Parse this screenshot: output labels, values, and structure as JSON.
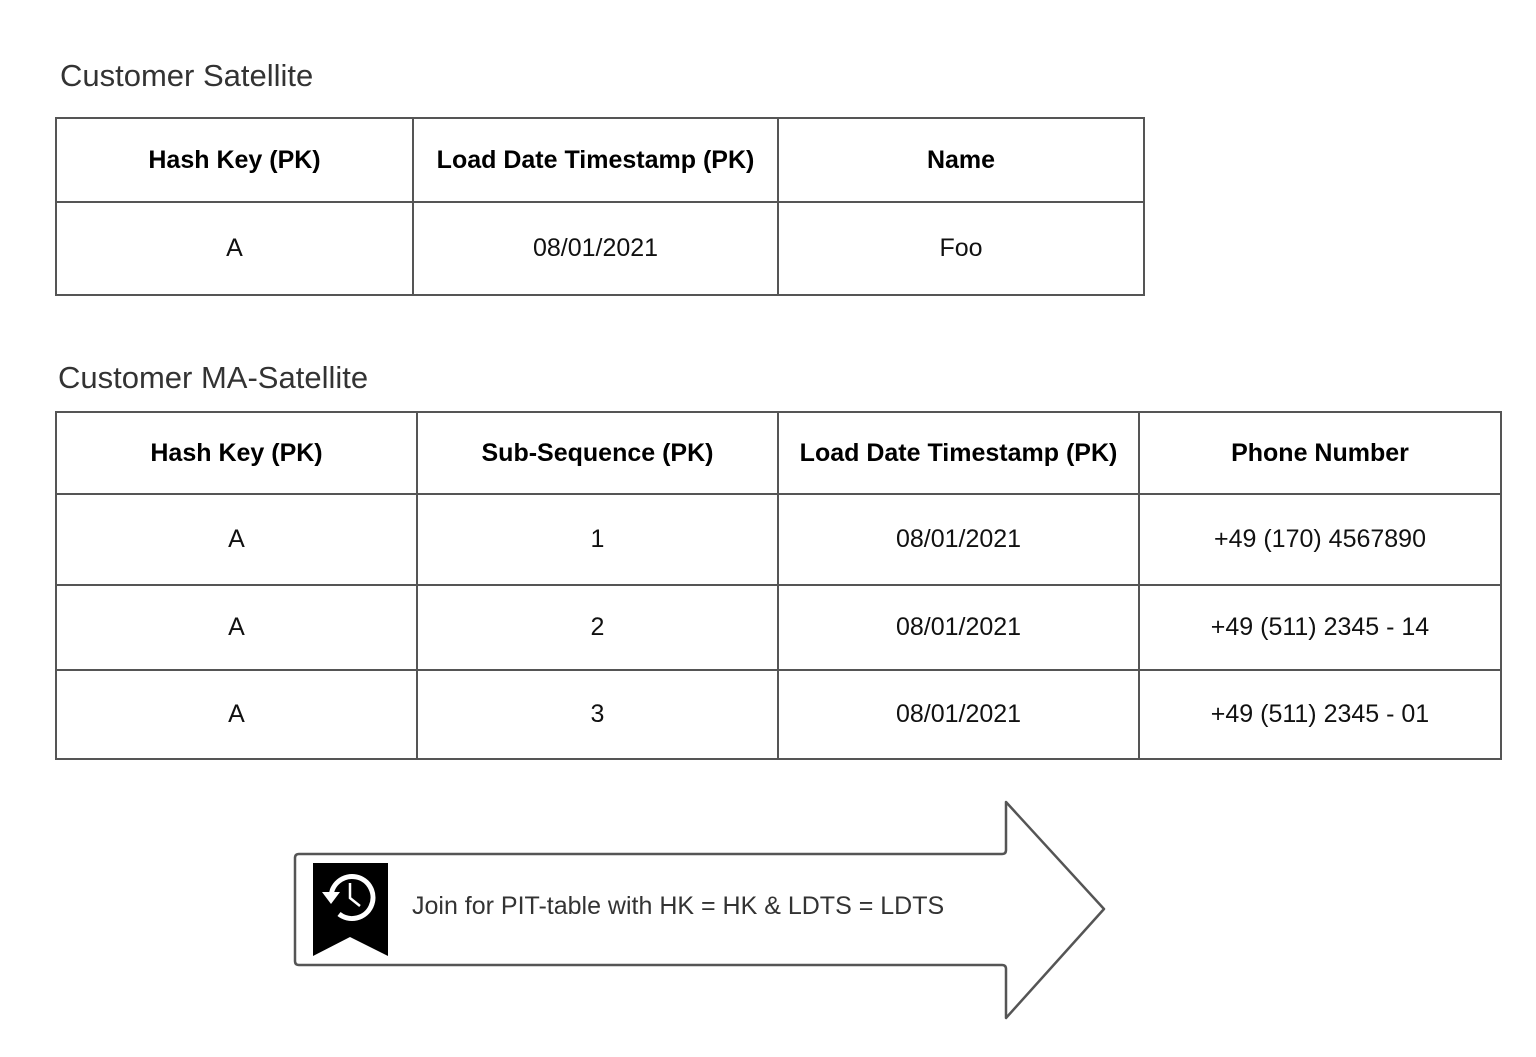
{
  "satellite": {
    "title": "Customer Satellite",
    "headers": [
      "Hash Key (PK)",
      "Load Date Timestamp (PK)",
      "Name"
    ],
    "rows": [
      [
        "A",
        "08/01/2021",
        "Foo"
      ]
    ]
  },
  "ma_satellite": {
    "title": "Customer MA-Satellite",
    "headers": [
      "Hash Key (PK)",
      "Sub-Sequence (PK)",
      "Load Date Timestamp (PK)",
      "Phone Number"
    ],
    "rows": [
      [
        "A",
        "1",
        "08/01/2021",
        "+49 (170) 4567890"
      ],
      [
        "A",
        "2",
        "08/01/2021",
        "+49 (511) 2345 - 14"
      ],
      [
        "A",
        "3",
        "08/01/2021",
        "+49 (511) 2345 - 01"
      ]
    ]
  },
  "arrow": {
    "icon": "history-bookmark-icon",
    "label": "Join for PIT-table with HK = HK & LDTS = LDTS"
  }
}
